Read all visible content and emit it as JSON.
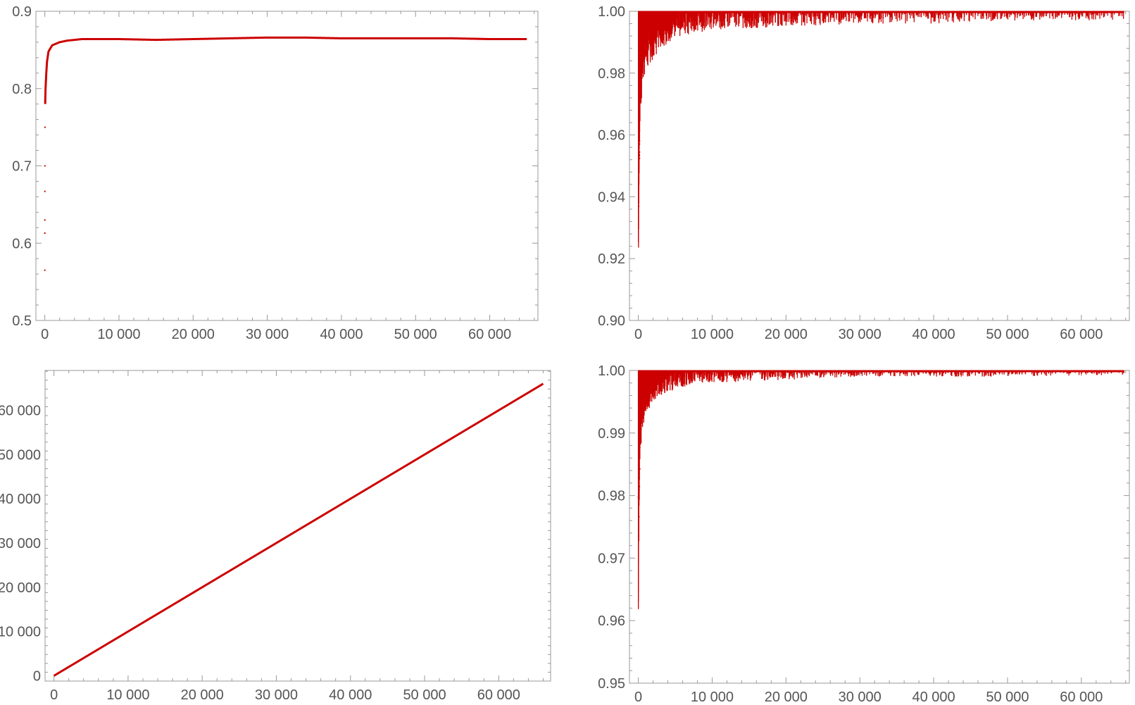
{
  "chart_data": [
    {
      "type": "scatter",
      "position": "top-left",
      "title": "",
      "xlabel": "",
      "ylabel": "",
      "xlim": [
        -1200,
        66500
      ],
      "ylim": [
        0.5,
        0.9
      ],
      "xticks": [
        0,
        10000,
        20000,
        30000,
        40000,
        50000,
        60000
      ],
      "xtick_labels": [
        "0",
        "10 000",
        "20 000",
        "30 000",
        "40 000",
        "50 000",
        "60 000"
      ],
      "yticks": [
        0.5,
        0.6,
        0.7,
        0.8,
        0.9
      ],
      "ytick_labels": [
        "0.5",
        "0.6",
        "0.7",
        "0.8",
        "0.9"
      ],
      "grid": false,
      "color": "#cc0000",
      "series": [
        {
          "x": [
            1,
            2,
            3,
            5,
            10,
            20,
            50,
            100,
            200,
            300,
            500,
            1000,
            2000,
            3000,
            5000,
            10000,
            15000,
            20000,
            25000,
            30000,
            35000,
            40000,
            45000,
            50000,
            55000,
            60000,
            65000
          ],
          "y": [
            0.565,
            0.613,
            0.63,
            0.667,
            0.7,
            0.75,
            0.78,
            0.8,
            0.82,
            0.835,
            0.848,
            0.856,
            0.86,
            0.862,
            0.864,
            0.864,
            0.863,
            0.864,
            0.865,
            0.866,
            0.866,
            0.865,
            0.865,
            0.865,
            0.865,
            0.864,
            0.864
          ]
        }
      ]
    },
    {
      "type": "scatter",
      "position": "top-right",
      "title": "",
      "xlabel": "",
      "ylabel": "",
      "xlim": [
        -1200,
        66500
      ],
      "ylim": [
        0.9,
        1.0
      ],
      "xticks": [
        0,
        10000,
        20000,
        30000,
        40000,
        50000,
        60000
      ],
      "xtick_labels": [
        "0",
        "10 000",
        "20 000",
        "30 000",
        "40 000",
        "50 000",
        "60 000"
      ],
      "yticks": [
        0.9,
        0.92,
        0.94,
        0.96,
        0.98,
        1.0
      ],
      "ytick_labels": [
        "0.90",
        "0.92",
        "0.94",
        "0.96",
        "0.98",
        "1.00"
      ],
      "grid": false,
      "color": "#cc0000",
      "series": [
        {
          "x": [
            10,
            20,
            30,
            50,
            80,
            100,
            150,
            200,
            300,
            500,
            700,
            1000,
            1500,
            2000,
            3000,
            5000,
            8000,
            10000,
            20000,
            30000,
            40000,
            50000,
            60000,
            65000
          ],
          "y_min": [
            0.912,
            0.917,
            0.925,
            0.931,
            0.938,
            0.944,
            0.95,
            0.96,
            0.966,
            0.972,
            0.978,
            0.981,
            0.983,
            0.984,
            0.988,
            0.991,
            0.993,
            0.994,
            0.995,
            0.996,
            0.996,
            0.997,
            0.997,
            0.997
          ],
          "y_max": [
            1.0,
            1.0,
            1.0,
            1.0,
            1.0,
            1.0,
            1.0,
            1.0,
            1.0,
            1.0,
            1.0,
            1.0,
            1.0,
            1.0,
            1.0,
            1.0,
            1.0,
            1.0,
            1.0,
            1.0,
            1.0,
            1.0,
            1.0,
            1.0
          ]
        }
      ]
    },
    {
      "type": "scatter",
      "position": "bottom-left",
      "title": "",
      "xlabel": "",
      "ylabel": "",
      "xlim": [
        -1200,
        67000
      ],
      "ylim": [
        -1200,
        69000
      ],
      "xticks": [
        0,
        10000,
        20000,
        30000,
        40000,
        50000,
        60000
      ],
      "xtick_labels": [
        "0",
        "10 000",
        "20 000",
        "30 000",
        "40 000",
        "50 000",
        "60 000"
      ],
      "yticks": [
        0,
        10000,
        20000,
        30000,
        40000,
        50000,
        60000
      ],
      "ytick_labels": [
        "0",
        "10 000",
        "20 000",
        "30 000",
        "40 000",
        "50 000",
        "60 000"
      ],
      "grid": false,
      "color": "#cc0000",
      "series": [
        {
          "x": [
            0,
            10000,
            20000,
            30000,
            40000,
            50000,
            60000,
            66000
          ],
          "y": [
            0,
            10000,
            20000,
            30000,
            40000,
            50000,
            60000,
            66000
          ]
        }
      ]
    },
    {
      "type": "scatter",
      "position": "bottom-right",
      "title": "",
      "xlabel": "",
      "ylabel": "",
      "xlim": [
        -1200,
        66500
      ],
      "ylim": [
        0.95,
        1.0
      ],
      "xticks": [
        0,
        10000,
        20000,
        30000,
        40000,
        50000,
        60000
      ],
      "xtick_labels": [
        "0",
        "10 000",
        "20 000",
        "30 000",
        "40 000",
        "50 000",
        "60 000"
      ],
      "yticks": [
        0.95,
        0.96,
        0.97,
        0.98,
        0.99,
        1.0
      ],
      "ytick_labels": [
        "0.95",
        "0.96",
        "0.97",
        "0.98",
        "0.99",
        "1.00"
      ],
      "grid": false,
      "color": "#cc0000",
      "series": [
        {
          "x": [
            10,
            20,
            30,
            50,
            80,
            100,
            150,
            200,
            300,
            500,
            700,
            1000,
            1500,
            2000,
            3000,
            5000,
            8000,
            10000,
            20000,
            30000,
            40000,
            50000,
            60000,
            65000
          ],
          "y_min": [
            0.96,
            0.962,
            0.966,
            0.97,
            0.973,
            0.976,
            0.98,
            0.984,
            0.987,
            0.989,
            0.991,
            0.993,
            0.994,
            0.995,
            0.996,
            0.997,
            0.998,
            0.998,
            0.9985,
            0.999,
            0.999,
            0.999,
            0.9992,
            0.9993
          ],
          "y_max": [
            1.0,
            1.0,
            1.0,
            1.0,
            1.0,
            1.0,
            1.0,
            1.0,
            1.0,
            1.0,
            1.0,
            1.0,
            1.0,
            1.0,
            1.0,
            1.0,
            1.0,
            1.0,
            1.0,
            1.0,
            1.0,
            1.0,
            1.0,
            1.0
          ]
        }
      ]
    }
  ]
}
